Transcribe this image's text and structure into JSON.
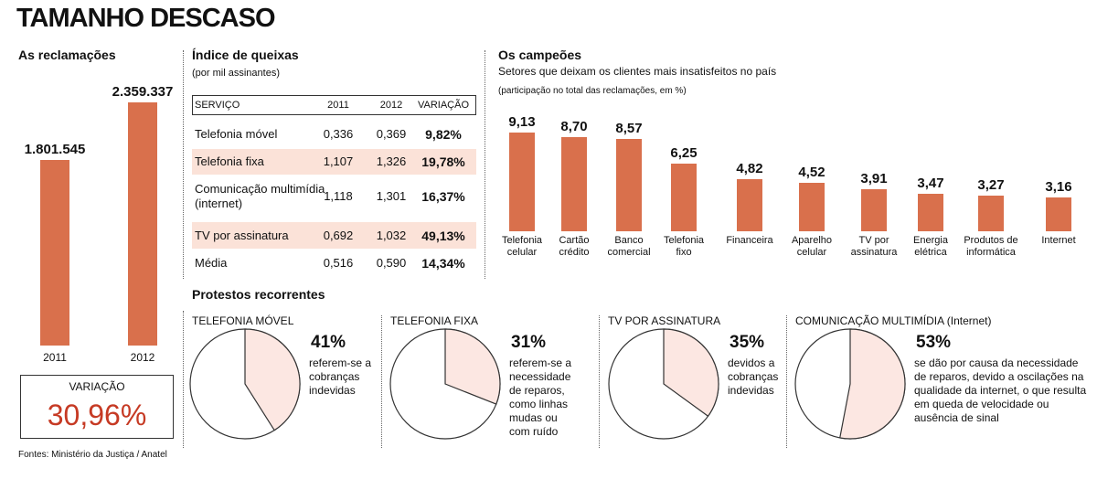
{
  "title": "TAMANHO DESCASO",
  "source": "Fontes: Ministério da Justiça / Anatel",
  "section": "Protestos recorrentes",
  "table": {
    "title": "Índice de queixas",
    "subtitle": "(por mil assinantes)",
    "header": [
      "SERVIÇO",
      "2011",
      "2012",
      "VARIAÇÃO"
    ],
    "rows": [
      [
        "Telefonia móvel",
        "0,336",
        "0,369",
        "9,82%"
      ],
      [
        "Telefonia fixa",
        "1,107",
        "1,326",
        "19,78%"
      ],
      [
        "Comunicação multimídia (internet)",
        "1,118",
        "1,301",
        "16,37%"
      ],
      [
        "TV por assinatura",
        "0,692",
        "1,032",
        "49,13%"
      ],
      [
        "Média",
        "0,516",
        "0,590",
        "14,34%"
      ]
    ]
  },
  "chart_data": [
    {
      "type": "bar",
      "title": "As reclamações",
      "categories": [
        "2011",
        "2012"
      ],
      "values": [
        1801545,
        2359337
      ],
      "value_labels": [
        "1.801.545",
        "2.359.337"
      ],
      "color": "#d9704c",
      "variation_label": "VARIAÇÃO",
      "variation": "30,96%"
    },
    {
      "type": "bar",
      "title": "Os campeões",
      "subtitle": "Setores que deixam os clientes mais insatisfeitos no país",
      "note": "(participação no total das reclamações, em %)",
      "categories": [
        "Telefonia celular",
        "Cartão crédito",
        "Banco comercial",
        "Telefonia fixo",
        "Financeira",
        "Aparelho celular",
        "TV por assinatura",
        "Energia elétrica",
        "Produtos de informática",
        "Internet"
      ],
      "values": [
        9.13,
        8.7,
        8.57,
        6.25,
        4.82,
        4.52,
        3.91,
        3.47,
        3.27,
        3.16
      ],
      "value_labels": [
        "9,13",
        "8,70",
        "8,57",
        "6,25",
        "4,82",
        "4,52",
        "3,91",
        "3,47",
        "3,27",
        "3,16"
      ],
      "color": "#d9704c"
    },
    {
      "type": "pie",
      "title": "TELEFONIA MÓVEL",
      "values": [
        41
      ],
      "value_labels": [
        "41%"
      ],
      "annotation": "referem-se a cobranças indevidas",
      "color": "#fce7e2"
    },
    {
      "type": "pie",
      "title": "TELEFONIA FIXA",
      "values": [
        31
      ],
      "value_labels": [
        "31%"
      ],
      "annotation": "referem-se a necessidade de reparos, como linhas mudas ou com ruído",
      "color": "#fce7e2"
    },
    {
      "type": "pie",
      "title": "TV POR ASSINATURA",
      "values": [
        35
      ],
      "value_labels": [
        "35%"
      ],
      "annotation": "devidos a cobranças indevidas",
      "color": "#fce7e2"
    },
    {
      "type": "pie",
      "title": "COMUNICAÇÃO MULTIMÍDIA (Internet)",
      "values": [
        53
      ],
      "value_labels": [
        "53%"
      ],
      "annotation": "se dão por causa da necessidade de reparos, devido a oscilações na qualidade da internet, o que resulta em queda de velocidade ou ausência de sinal",
      "color": "#fce7e2"
    }
  ]
}
